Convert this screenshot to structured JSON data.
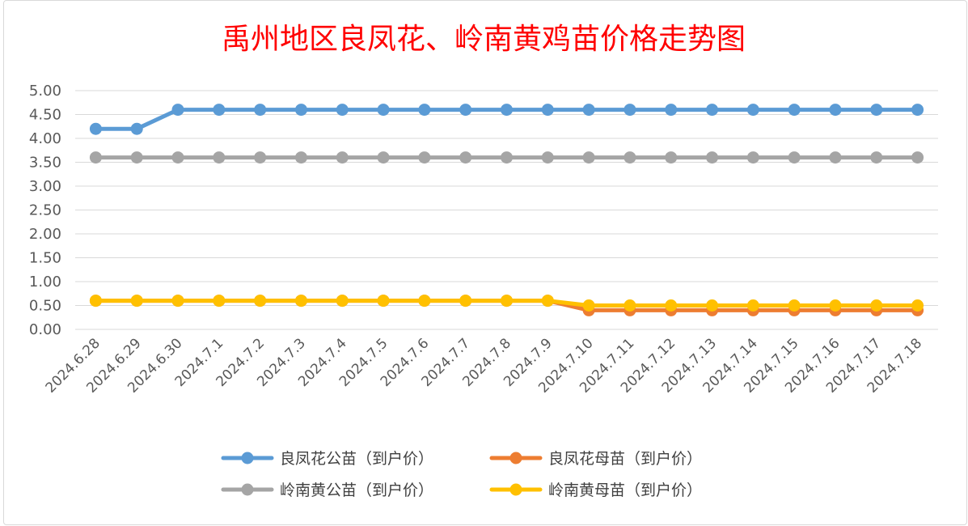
{
  "chart_data": {
    "type": "line",
    "title": "禹州地区良凤花、岭南黄鸡苗价格走势图",
    "xlabel": "",
    "ylabel": "",
    "ylim": [
      0,
      5
    ],
    "ytick_step": 0.5,
    "ytick_labels": [
      "0.00",
      "0.50",
      "1.00",
      "1.50",
      "2.00",
      "2.50",
      "3.00",
      "3.50",
      "4.00",
      "4.50",
      "5.00"
    ],
    "grid": true,
    "legend_position": "bottom",
    "categories": [
      "2024.6.28",
      "2024.6.29",
      "2024.6.30",
      "2024.7.1",
      "2024.7.2",
      "2024.7.3",
      "2024.7.4",
      "2024.7.5",
      "2024.7.6",
      "2024.7.7",
      "2024.7.8",
      "2024.7.9",
      "2024.7.10",
      "2024.7.11",
      "2024.7.12",
      "2024.7.13",
      "2024.7.14",
      "2024.7.15",
      "2024.7.16",
      "2024.7.17",
      "2024.7.18"
    ],
    "series": [
      {
        "name": "良凤花公苗（到户价）",
        "color": "#5b9bd5",
        "values": [
          4.2,
          4.2,
          4.6,
          4.6,
          4.6,
          4.6,
          4.6,
          4.6,
          4.6,
          4.6,
          4.6,
          4.6,
          4.6,
          4.6,
          4.6,
          4.6,
          4.6,
          4.6,
          4.6,
          4.6,
          4.6
        ]
      },
      {
        "name": "良凤花母苗（到户价）",
        "color": "#ed7d31",
        "values": [
          0.6,
          0.6,
          0.6,
          0.6,
          0.6,
          0.6,
          0.6,
          0.6,
          0.6,
          0.6,
          0.6,
          0.6,
          0.4,
          0.4,
          0.4,
          0.4,
          0.4,
          0.4,
          0.4,
          0.4,
          0.4
        ]
      },
      {
        "name": "岭南黄公苗（到户价）",
        "color": "#a5a5a5",
        "values": [
          3.6,
          3.6,
          3.6,
          3.6,
          3.6,
          3.6,
          3.6,
          3.6,
          3.6,
          3.6,
          3.6,
          3.6,
          3.6,
          3.6,
          3.6,
          3.6,
          3.6,
          3.6,
          3.6,
          3.6,
          3.6
        ]
      },
      {
        "name": "岭南黄母苗（到户价）",
        "color": "#ffc000",
        "values": [
          0.6,
          0.6,
          0.6,
          0.6,
          0.6,
          0.6,
          0.6,
          0.6,
          0.6,
          0.6,
          0.6,
          0.6,
          0.5,
          0.5,
          0.5,
          0.5,
          0.5,
          0.5,
          0.5,
          0.5,
          0.5
        ]
      }
    ],
    "legend_order": [
      0,
      1,
      2,
      3
    ],
    "draw_order": [
      2,
      0,
      1,
      3
    ]
  }
}
